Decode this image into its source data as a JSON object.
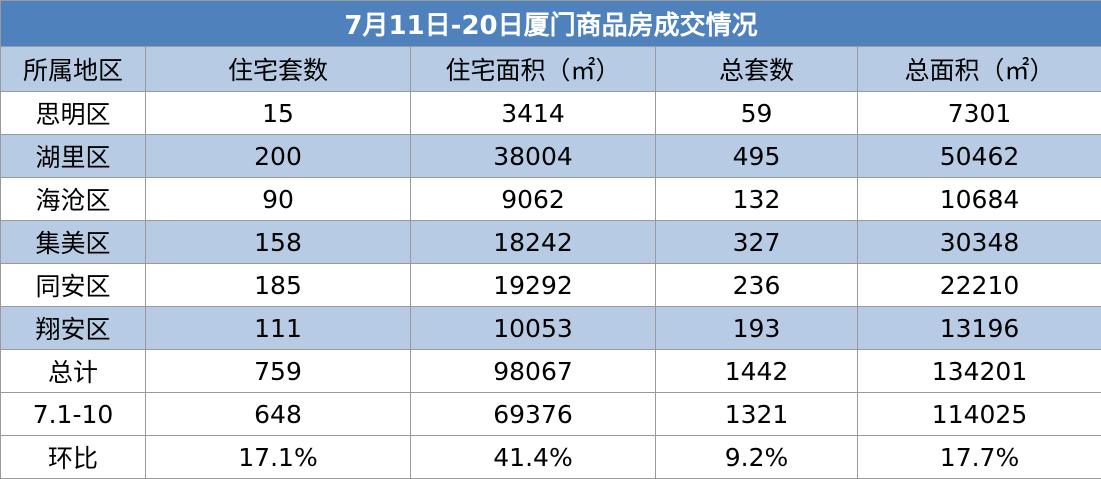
{
  "title": "7月11日-20日厦门商品房成交情况",
  "headers": [
    "所属地区",
    "住宅套数",
    "住宅面积（㎡）",
    "总套数",
    "总面积（㎡）"
  ],
  "rows": [
    [
      "思明区",
      "15",
      "3414",
      "59",
      "7301"
    ],
    [
      "湖里区",
      "200",
      "38004",
      "495",
      "50462"
    ],
    [
      "海沧区",
      "90",
      "9062",
      "132",
      "10684"
    ],
    [
      "集美区",
      "158",
      "18242",
      "327",
      "30348"
    ],
    [
      "同安区",
      "185",
      "19292",
      "236",
      "22210"
    ],
    [
      "翔安区",
      "111",
      "10053",
      "193",
      "13196"
    ],
    [
      "总计",
      "759",
      "98067",
      "1442",
      "134201"
    ],
    [
      "7.1-10",
      "648",
      "69376",
      "1321",
      "114025"
    ],
    [
      "环比",
      "17.1%",
      "41.4%",
      "9.2%",
      "17.7%"
    ]
  ],
  "colors": {
    "title_bg": "#4f81bd",
    "band_bg": "#b7cce4",
    "title_text": "#ffffff",
    "border": "#9a9a9a"
  }
}
